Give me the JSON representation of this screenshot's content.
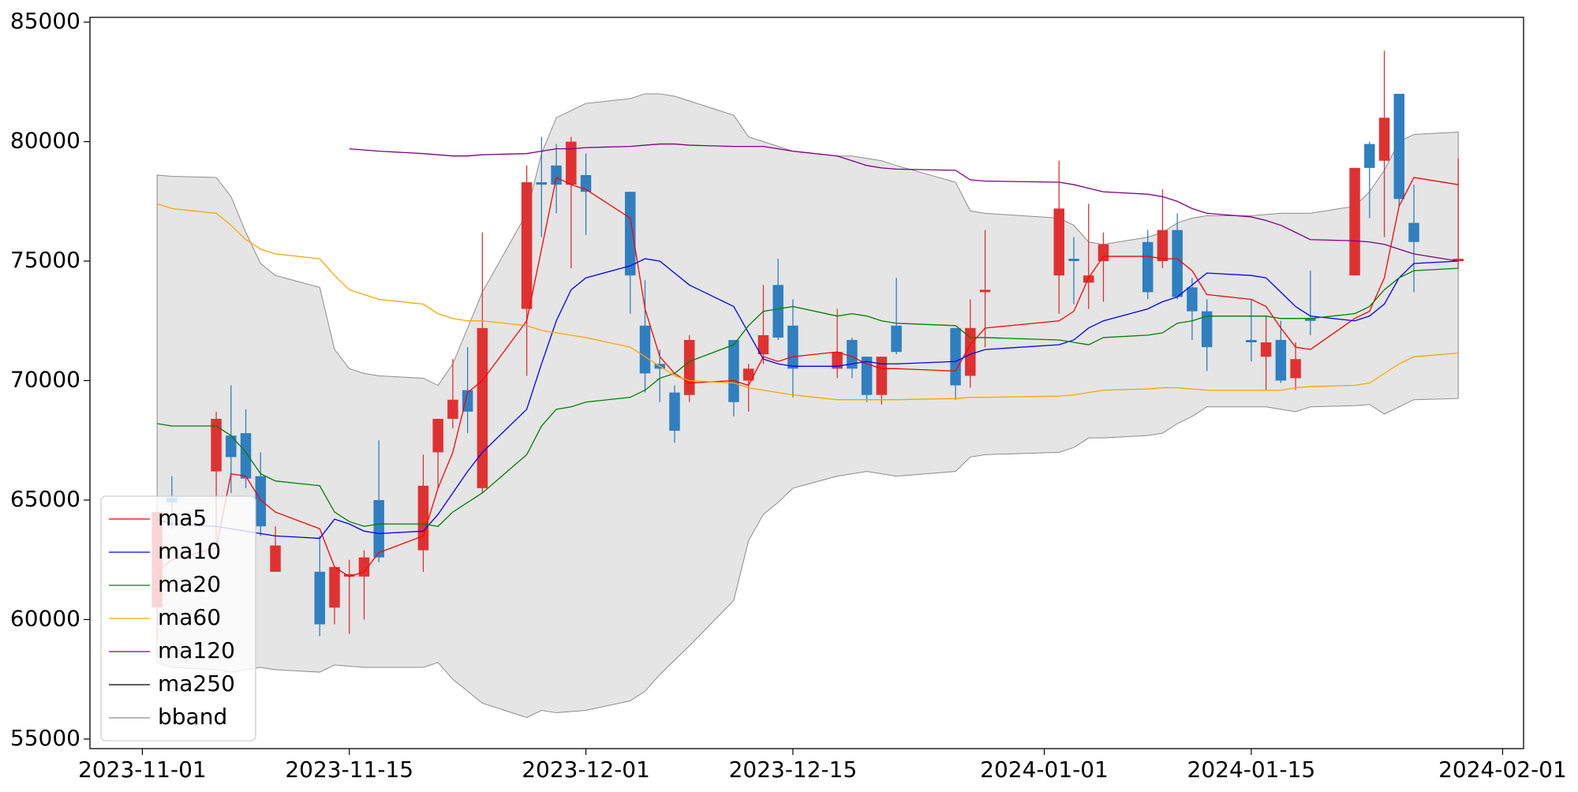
{
  "chart_data": {
    "type": "candlestick",
    "x": [
      "2023-11-02",
      "2023-11-03",
      "2023-11-06",
      "2023-11-07",
      "2023-11-08",
      "2023-11-09",
      "2023-11-10",
      "2023-11-13",
      "2023-11-14",
      "2023-11-15",
      "2023-11-16",
      "2023-11-17",
      "2023-11-20",
      "2023-11-21",
      "2023-11-22",
      "2023-11-23",
      "2023-11-24",
      "2023-11-27",
      "2023-11-28",
      "2023-11-29",
      "2023-11-30",
      "2023-12-01",
      "2023-12-04",
      "2023-12-05",
      "2023-12-06",
      "2023-12-07",
      "2023-12-08",
      "2023-12-11",
      "2023-12-12",
      "2023-12-13",
      "2023-12-14",
      "2023-12-15",
      "2023-12-18",
      "2023-12-19",
      "2023-12-20",
      "2023-12-21",
      "2023-12-22",
      "2023-12-26",
      "2023-12-27",
      "2023-12-28",
      "2024-01-02",
      "2024-01-03",
      "2024-01-04",
      "2024-01-05",
      "2024-01-08",
      "2024-01-09",
      "2024-01-10",
      "2024-01-11",
      "2024-01-12",
      "2024-01-15",
      "2024-01-16",
      "2024-01-17",
      "2024-01-18",
      "2024-01-19",
      "2024-01-22",
      "2024-01-23",
      "2024-01-24",
      "2024-01-25",
      "2024-01-26",
      "2024-01-29"
    ],
    "open": [
      60500,
      65100,
      66200,
      67700,
      67800,
      66000,
      62000,
      62000,
      60500,
      61800,
      61800,
      65000,
      62900,
      67000,
      68400,
      69600,
      65500,
      73000,
      78300,
      79000,
      78200,
      78600,
      77900,
      72300,
      70700,
      69500,
      69400,
      71700,
      70000,
      71100,
      74000,
      72300,
      70500,
      71700,
      71000,
      69400,
      72300,
      72200,
      70200,
      73700,
      74400,
      75100,
      74100,
      75000,
      75800,
      75000,
      76300,
      73900,
      72900,
      71700,
      71000,
      71700,
      70100,
      72600,
      74400,
      79900,
      79200,
      82000,
      76600,
      75000
    ],
    "high": [
      64500,
      66000,
      68700,
      69800,
      68800,
      67000,
      63900,
      63500,
      62200,
      62500,
      62900,
      67500,
      66900,
      68400,
      70900,
      71400,
      76200,
      79000,
      80200,
      79900,
      80200,
      79500,
      77900,
      74200,
      71300,
      69800,
      71900,
      71700,
      70700,
      74000,
      75100,
      73400,
      73000,
      71800,
      71000,
      71000,
      74300,
      72200,
      73400,
      76300,
      79200,
      76000,
      77400,
      76200,
      76300,
      78000,
      77000,
      74300,
      73400,
      73400,
      72700,
      72500,
      71600,
      74600,
      78900,
      80000,
      83800,
      82000,
      78200,
      79300
    ],
    "low": [
      59200,
      63800,
      63000,
      65300,
      65500,
      63500,
      62000,
      59300,
      59800,
      59400,
      60000,
      62400,
      62000,
      65500,
      68000,
      67800,
      65300,
      70200,
      76000,
      77000,
      74700,
      76100,
      72800,
      69500,
      69100,
      67400,
      69100,
      68500,
      68700,
      70700,
      71700,
      69300,
      70100,
      70100,
      69100,
      69000,
      71100,
      69200,
      69700,
      71400,
      72800,
      73200,
      73000,
      73300,
      73400,
      74700,
      73400,
      71700,
      70400,
      70800,
      69600,
      69900,
      69600,
      71900,
      74400,
      76800,
      76000,
      77300,
      73700,
      74700
    ],
    "close": [
      64500,
      64900,
      68400,
      66800,
      65900,
      63900,
      63100,
      59800,
      62200,
      61900,
      62600,
      62600,
      65600,
      68400,
      69200,
      68700,
      72200,
      78300,
      78200,
      78200,
      80000,
      77900,
      74400,
      70300,
      70500,
      67900,
      71700,
      69100,
      70500,
      71900,
      71800,
      70500,
      71200,
      70500,
      69400,
      71000,
      71200,
      69800,
      72200,
      73800,
      77200,
      75000,
      74400,
      75700,
      73700,
      76300,
      73500,
      72900,
      71400,
      71600,
      71600,
      70000,
      70900,
      72500,
      78900,
      78900,
      81000,
      77600,
      75800,
      75100
    ],
    "up_color": "#e03131",
    "down_color": "#2f7fc1",
    "series": [
      {
        "name": "ma5",
        "color": "#ff0000",
        "values": [
          62000,
          62500,
          63000,
          66100,
          66000,
          65000,
          64500,
          63800,
          62200,
          61800,
          62000,
          62800,
          63500,
          65500,
          67000,
          69500,
          70000,
          72500,
          75500,
          78500,
          78200,
          78000,
          76800,
          73000,
          71000,
          70300,
          69900,
          70000,
          69800,
          71000,
          70800,
          71000,
          71200,
          71000,
          70700,
          70500,
          70500,
          70400,
          71500,
          72200,
          72500,
          72900,
          74300,
          75200,
          75200,
          75100,
          75100,
          74600,
          73600,
          73400,
          73100,
          72200,
          71400,
          71300,
          72600,
          72900,
          74300,
          77300,
          78500,
          78200
        ]
      },
      {
        "name": "ma10",
        "color": "#0000ff",
        "values": [
          64200,
          64000,
          63900,
          63800,
          63700,
          63600,
          63500,
          63400,
          64200,
          64000,
          63700,
          63600,
          63700,
          64400,
          65300,
          66200,
          67000,
          68800,
          70700,
          72500,
          73800,
          74300,
          74800,
          75100,
          75000,
          74500,
          74000,
          73100,
          72000,
          70900,
          70700,
          70600,
          70600,
          70700,
          70800,
          70700,
          70700,
          70800,
          71100,
          71300,
          71500,
          71700,
          72200,
          72500,
          73000,
          73300,
          73500,
          74000,
          74500,
          74400,
          74300,
          73700,
          73100,
          72700,
          72500,
          72700,
          73200,
          74300,
          74900,
          75000
        ]
      },
      {
        "name": "ma20",
        "color": "#008000",
        "values": [
          68200,
          68100,
          68100,
          67700,
          67000,
          66100,
          65800,
          65600,
          64500,
          64100,
          63900,
          64000,
          64000,
          63900,
          64500,
          64900,
          65300,
          66900,
          68100,
          68800,
          68900,
          69100,
          69300,
          69600,
          70100,
          70300,
          70800,
          71500,
          72300,
          72900,
          73000,
          73100,
          72700,
          72800,
          72700,
          72500,
          72400,
          72300,
          71800,
          71800,
          71700,
          71600,
          71500,
          71800,
          71900,
          72000,
          72400,
          72500,
          72700,
          72700,
          72700,
          72600,
          72600,
          72600,
          72800,
          73100,
          73800,
          74300,
          74600,
          74700
        ]
      },
      {
        "name": "ma60",
        "color": "#ffa500",
        "values": [
          77400,
          77200,
          77000,
          76500,
          75900,
          75500,
          75300,
          75100,
          74400,
          73800,
          73600,
          73400,
          73200,
          72800,
          72600,
          72500,
          72500,
          72300,
          72100,
          72000,
          71900,
          71800,
          71400,
          71000,
          70600,
          70200,
          70000,
          69900,
          69700,
          69600,
          69500,
          69400,
          69200,
          69200,
          69200,
          69200,
          69200,
          69250,
          69300,
          69300,
          69350,
          69400,
          69500,
          69600,
          69650,
          69700,
          69700,
          69650,
          69600,
          69600,
          69600,
          69600,
          69700,
          69750,
          69800,
          69900,
          70300,
          70700,
          71000,
          71150
        ]
      },
      {
        "name": "ma120",
        "color": "#800080",
        "values": [
          null,
          null,
          null,
          null,
          null,
          null,
          null,
          null,
          null,
          79700,
          79650,
          79600,
          79500,
          79450,
          79400,
          79400,
          79450,
          79500,
          79600,
          79700,
          79700,
          79750,
          79800,
          79850,
          79900,
          79900,
          79850,
          79800,
          79800,
          79800,
          79700,
          79600,
          79400,
          79200,
          79000,
          78900,
          78850,
          78800,
          78400,
          78350,
          78300,
          78200,
          78050,
          77900,
          77800,
          77700,
          77500,
          77200,
          77000,
          76850,
          76700,
          76500,
          76200,
          75900,
          75850,
          75800,
          75700,
          75500,
          75300,
          75000
        ]
      },
      {
        "name": "ma250",
        "color": "#000000",
        "values": [
          null,
          null,
          null,
          null,
          null,
          null,
          null,
          null,
          null,
          null,
          null,
          null,
          null,
          null,
          null,
          null,
          null,
          null,
          null,
          null,
          null,
          null,
          null,
          null,
          null,
          null,
          null,
          null,
          null,
          null,
          null,
          null,
          null,
          null,
          null,
          null,
          null,
          null,
          null,
          null,
          null,
          null,
          null,
          null,
          null,
          null,
          null,
          null,
          null,
          null,
          null,
          null,
          null,
          null,
          null,
          null,
          null,
          null,
          null,
          null
        ]
      }
    ],
    "bband": {
      "name": "bband",
      "color": "#8c8c8c",
      "fill": "#e5e5e5",
      "upper": [
        78600,
        78550,
        78500,
        77700,
        76200,
        74900,
        74400,
        73900,
        71300,
        70500,
        70300,
        70200,
        70100,
        69800,
        70700,
        72200,
        73700,
        77000,
        79500,
        81000,
        81300,
        81600,
        81800,
        82000,
        82000,
        81900,
        81700,
        81100,
        80200,
        80000,
        79800,
        79600,
        79400,
        79400,
        79300,
        79200,
        79000,
        78300,
        77100,
        77000,
        76800,
        76500,
        75800,
        75700,
        76000,
        76200,
        76600,
        76800,
        76900,
        76900,
        76950,
        77000,
        77000,
        77000,
        77300,
        77900,
        78800,
        80000,
        80300,
        80400
      ],
      "lower": [
        58200,
        58000,
        57900,
        57800,
        57900,
        58000,
        57900,
        57800,
        58100,
        58050,
        58000,
        58000,
        58000,
        58200,
        57500,
        57000,
        56500,
        55900,
        56200,
        56100,
        56150,
        56200,
        56600,
        57000,
        57700,
        58300,
        58900,
        60800,
        63300,
        64400,
        64900,
        65500,
        66000,
        66100,
        66200,
        66100,
        66000,
        66200,
        66800,
        66900,
        67000,
        67200,
        67600,
        67600,
        67700,
        67800,
        68200,
        68500,
        68900,
        68900,
        68900,
        68800,
        68700,
        68900,
        68950,
        69000,
        68600,
        68900,
        69200,
        69250
      ]
    },
    "xlim": [
      "2023-10-28T11:00",
      "2024-02-02T10:00"
    ],
    "xticks": [
      "2023-11-01",
      "2023-11-15",
      "2023-12-01",
      "2023-12-15",
      "2024-01-01",
      "2024-01-15",
      "2024-02-01"
    ],
    "ylim": [
      54600,
      85200
    ],
    "yticks": [
      55000,
      60000,
      65000,
      70000,
      75000,
      80000,
      85000
    ],
    "legend": "lower left"
  }
}
